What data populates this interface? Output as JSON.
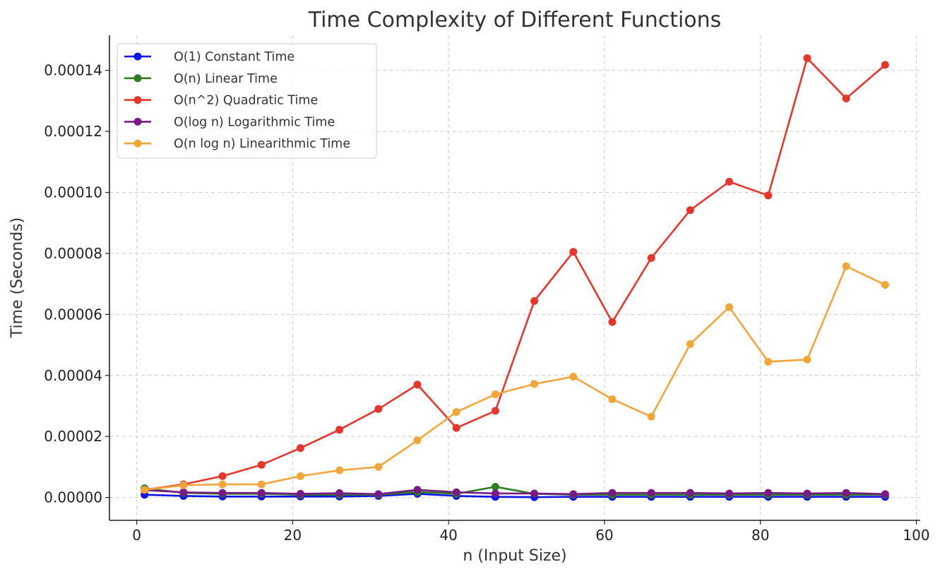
{
  "chart_data": {
    "type": "line",
    "title": "Time Complexity of Different Functions",
    "xlabel": "n (Input Size)",
    "ylabel": "Time (Seconds)",
    "xlim": [
      -3.5,
      100.5
    ],
    "ylim": [
      -7.5e-06,
      0.0001515
    ],
    "xticks": [
      0,
      20,
      40,
      60,
      80,
      100
    ],
    "xtick_labels": [
      "0",
      "20",
      "40",
      "60",
      "80",
      "100"
    ],
    "yticks": [
      0,
      2e-05,
      4e-05,
      6e-05,
      8e-05,
      0.0001,
      0.00012,
      0.00014
    ],
    "ytick_labels": [
      "0.00000",
      "0.00002",
      "0.00004",
      "0.00006",
      "0.00008",
      "0.00010",
      "0.00012",
      "0.00014"
    ],
    "grid": true,
    "legend_position": "top-left",
    "x": [
      1,
      6,
      11,
      16,
      21,
      26,
      31,
      36,
      41,
      46,
      51,
      56,
      61,
      66,
      71,
      76,
      81,
      86,
      91,
      96
    ],
    "series": [
      {
        "name": "O(1) Constant Time",
        "color": "#0a14e6",
        "values": [
          9e-07,
          5e-07,
          3e-07,
          3e-07,
          3e-07,
          3e-07,
          5e-07,
          1.2e-06,
          5e-07,
          2e-07,
          1e-07,
          2e-07,
          2e-07,
          2e-07,
          2e-07,
          2e-07,
          2e-07,
          2e-07,
          2e-07,
          2e-07
        ]
      },
      {
        "name": "O(n) Linear Time",
        "color": "#2e7d21",
        "values": [
          3e-06,
          1.5e-06,
          1.2e-06,
          1.2e-06,
          9e-07,
          9e-07,
          9e-07,
          1.8e-06,
          1.2e-06,
          3.5e-06,
          1.2e-06,
          9e-07,
          9e-07,
          9e-07,
          9e-07,
          9e-07,
          9e-07,
          9e-07,
          9e-07,
          9e-07
        ]
      },
      {
        "name": "O(n^2) Quadratic Time",
        "color": "#e8352a",
        "values": [
          2.5e-06,
          4.3e-06,
          7e-06,
          1.07e-05,
          1.62e-05,
          2.22e-05,
          2.9e-05,
          3.7e-05,
          2.28e-05,
          2.84e-05,
          6.44e-05,
          8.05e-05,
          5.75e-05,
          7.85e-05,
          9.42e-05,
          0.0001035,
          9.9e-05,
          0.000144,
          0.0001308,
          0.0001418
        ]
      },
      {
        "name": "O(log n) Logarithmic Time",
        "color": "#7a1a85",
        "values": [
          2.4e-06,
          1.7e-06,
          1.5e-06,
          1.5e-06,
          1.2e-06,
          1.4e-06,
          1.1e-06,
          2.5e-06,
          1.7e-06,
          1.3e-06,
          1.3e-06,
          1.1e-06,
          1.5e-06,
          1.5e-06,
          1.5e-06,
          1.3e-06,
          1.5e-06,
          1.3e-06,
          1.5e-06,
          1.1e-06
        ]
      },
      {
        "name": "O(n log n) Linearithmic Time",
        "color": "#f2a63a",
        "values": [
          2.5e-06,
          4e-06,
          4.3e-06,
          4.3e-06,
          7e-06,
          8.9e-06,
          1e-05,
          1.87e-05,
          2.8e-05,
          3.38e-05,
          3.72e-05,
          3.96e-05,
          3.22e-05,
          2.65e-05,
          5.03e-05,
          6.24e-05,
          4.45e-05,
          4.52e-05,
          7.58e-05,
          6.97e-05
        ]
      }
    ]
  }
}
